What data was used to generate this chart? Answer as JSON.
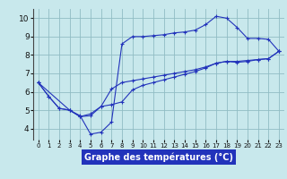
{
  "title": "Graphe des températures (°C)",
  "bg_color": "#c8e8ec",
  "plot_bg_color": "#c8e8ec",
  "grid_color": "#90bcc4",
  "line_color": "#2233bb",
  "xlabel_bg": "#2233bb",
  "xlabel_fg": "#ffffff",
  "xlim_min": -0.5,
  "xlim_max": 23.5,
  "ylim_min": 3.4,
  "ylim_max": 10.5,
  "yticks": [
    4,
    5,
    6,
    7,
    8,
    9,
    10
  ],
  "xticks": [
    0,
    1,
    2,
    3,
    4,
    5,
    6,
    7,
    8,
    9,
    10,
    11,
    12,
    13,
    14,
    15,
    16,
    17,
    18,
    19,
    20,
    21,
    22,
    23
  ],
  "line1_x": [
    0,
    1,
    2,
    3,
    4,
    5,
    6,
    7,
    8,
    9,
    10,
    11,
    12,
    13,
    14,
    15,
    16,
    17,
    18,
    19,
    20,
    21,
    22,
    23
  ],
  "line1_y": [
    6.5,
    5.75,
    5.1,
    5.0,
    4.7,
    3.7,
    3.8,
    4.35,
    8.6,
    9.0,
    9.0,
    9.05,
    9.1,
    9.2,
    9.25,
    9.35,
    9.65,
    10.1,
    10.0,
    9.5,
    8.9,
    8.9,
    8.85,
    8.2
  ],
  "line2_x": [
    0,
    1,
    2,
    3,
    4,
    5,
    6,
    7,
    8,
    9,
    10,
    11,
    12,
    13,
    14,
    15,
    16,
    17,
    18,
    19,
    20,
    21,
    22,
    23
  ],
  "line2_y": [
    6.5,
    5.75,
    5.1,
    5.0,
    4.65,
    4.7,
    5.2,
    5.3,
    5.45,
    6.1,
    6.35,
    6.5,
    6.65,
    6.8,
    6.95,
    7.1,
    7.3,
    7.55,
    7.65,
    7.6,
    7.65,
    7.75,
    7.8,
    8.2
  ],
  "line3_x": [
    0,
    3,
    4,
    5,
    6,
    7,
    8,
    9,
    10,
    11,
    12,
    13,
    14,
    15,
    16,
    17,
    18,
    19,
    20,
    21,
    22,
    23
  ],
  "line3_y": [
    6.5,
    5.0,
    4.65,
    4.8,
    5.2,
    6.15,
    6.5,
    6.6,
    6.7,
    6.8,
    6.9,
    7.0,
    7.1,
    7.2,
    7.35,
    7.55,
    7.65,
    7.65,
    7.7,
    7.75,
    7.8,
    8.2
  ]
}
